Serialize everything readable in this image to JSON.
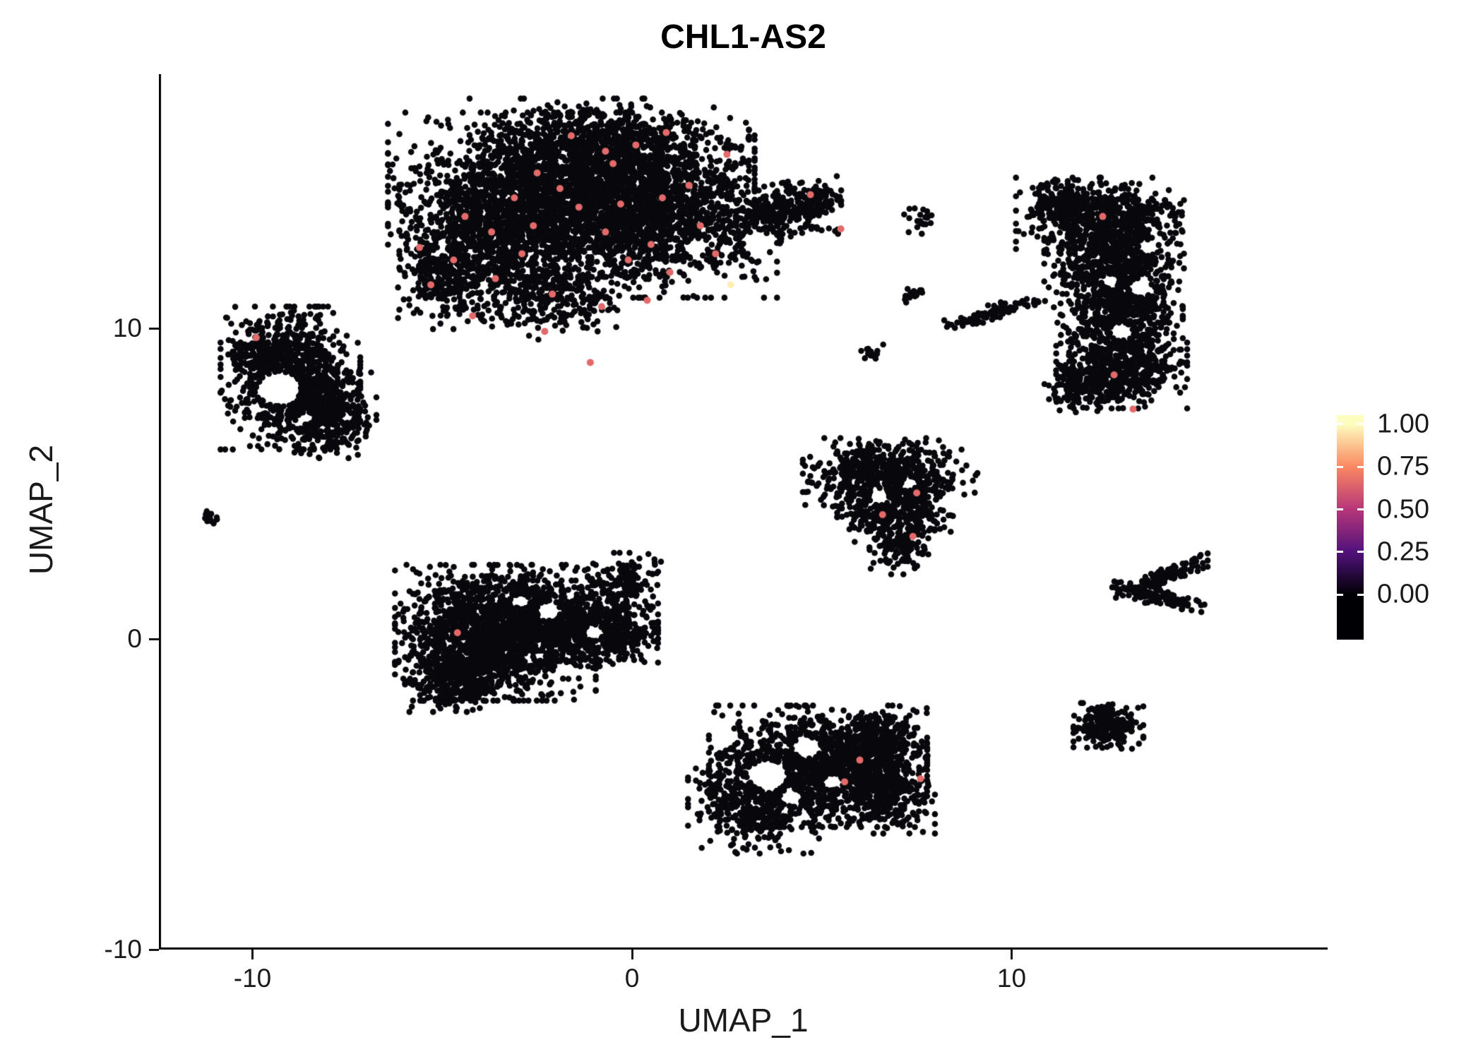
{
  "title": "CHL1-AS2",
  "axes": {
    "x": {
      "label": "UMAP_1",
      "ticks": [
        {
          "v": -10,
          "label": "-10"
        },
        {
          "v": 0,
          "label": "0"
        },
        {
          "v": 10,
          "label": "10"
        }
      ]
    },
    "y": {
      "label": "UMAP_2",
      "ticks": [
        {
          "v": 10,
          "label": "10"
        },
        {
          "v": 0,
          "label": "0"
        },
        {
          "v": -10,
          "label": "-10"
        }
      ]
    }
  },
  "legend": {
    "labels": [
      "1.00",
      "0.75",
      "0.50",
      "0.25",
      "0.00"
    ],
    "colors": [
      "#FCFDBF",
      "#FB8861",
      "#B63679",
      "#51127C",
      "#000004"
    ]
  },
  "chart_data": {
    "type": "scatter",
    "title": "CHL1-AS2",
    "xlabel": "UMAP_1",
    "ylabel": "UMAP_2",
    "xlim": [
      -12.4,
      18.3
    ],
    "ylim": [
      -10.2,
      18.2
    ],
    "x_ticks": [
      -10,
      0,
      10
    ],
    "y_ticks": [
      -10,
      0,
      10
    ],
    "grid": false,
    "legend_position": "right",
    "colorscale": {
      "name": "magma-like",
      "domain": [
        0,
        1
      ],
      "stops": [
        [
          0,
          "#000004"
        ],
        [
          0.25,
          "#51127C"
        ],
        [
          0.5,
          "#B63679"
        ],
        [
          0.75,
          "#FB8861"
        ],
        [
          1,
          "#FCFDBF"
        ]
      ]
    },
    "base_point_color": "#09090D",
    "point_radius_px": 4.3,
    "seed": 42,
    "clusters": [
      {
        "name": "top-large",
        "blobs": [
          [
            -1.6,
            14.3,
            2.1,
            1.15,
            2400,
            0
          ],
          [
            -3.6,
            12.9,
            1.1,
            1.0,
            800,
            0
          ],
          [
            0.6,
            13.4,
            1.4,
            1.05,
            1000,
            0
          ],
          [
            -0.6,
            15.9,
            1.6,
            0.65,
            650,
            0
          ],
          [
            -4.9,
            11.7,
            0.55,
            0.75,
            240,
            0
          ],
          [
            -2.0,
            10.9,
            0.9,
            0.55,
            280,
            0
          ],
          [
            3.9,
            13.7,
            0.7,
            0.42,
            300,
            0.25
          ],
          [
            4.9,
            14.15,
            0.25,
            0.18,
            60,
            0
          ],
          [
            5.4,
            13.1,
            0.12,
            0.1,
            4,
            0
          ]
        ],
        "holes": [
          [
            1.9,
            11.5,
            0.4
          ],
          [
            1.7,
            12.6,
            0.3
          ],
          [
            3.3,
            12.8,
            0.35
          ],
          [
            0.1,
            10.5,
            0.35
          ]
        ]
      },
      {
        "name": "left-ring",
        "blobs": [
          [
            -9.0,
            8.4,
            0.8,
            1.0,
            900,
            0
          ],
          [
            -8.0,
            7.2,
            0.55,
            0.6,
            320,
            0
          ],
          [
            -9.6,
            9.3,
            0.4,
            0.35,
            150,
            0
          ]
        ],
        "holes": [
          [
            -9.3,
            8.05,
            0.55
          ],
          [
            -8.6,
            7.1,
            0.2
          ]
        ]
      },
      {
        "name": "far-left-dots",
        "blobs": [
          [
            -11.15,
            3.95,
            0.13,
            0.17,
            14,
            0
          ]
        ],
        "holes": []
      },
      {
        "name": "bottom-left",
        "blobs": [
          [
            -3.6,
            0.2,
            1.15,
            0.95,
            1700,
            0
          ],
          [
            -1.5,
            0.5,
            0.95,
            0.6,
            650,
            0
          ],
          [
            -0.2,
            1.9,
            0.42,
            0.38,
            130,
            0
          ],
          [
            -4.6,
            -1.2,
            0.6,
            0.5,
            300,
            0
          ],
          [
            -0.4,
            0.0,
            0.45,
            0.35,
            120,
            0
          ]
        ],
        "holes": [
          [
            -2.2,
            0.9,
            0.3
          ],
          [
            -1.0,
            0.2,
            0.25
          ],
          [
            -2.9,
            1.2,
            0.22
          ]
        ]
      },
      {
        "name": "bottom-center",
        "blobs": [
          [
            4.9,
            -4.1,
            1.25,
            0.85,
            1400,
            0
          ],
          [
            3.2,
            -5.3,
            0.75,
            0.7,
            450,
            0
          ],
          [
            6.6,
            -5.0,
            0.6,
            0.55,
            300,
            0
          ],
          [
            6.5,
            -3.2,
            0.55,
            0.45,
            260,
            0
          ]
        ],
        "holes": [
          [
            3.6,
            -4.4,
            0.5
          ],
          [
            4.6,
            -3.5,
            0.35
          ],
          [
            4.2,
            -5.1,
            0.28
          ],
          [
            5.3,
            -4.6,
            0.25
          ]
        ]
      },
      {
        "name": "mid-triangle",
        "blobs": [
          [
            6.8,
            5.2,
            1.0,
            0.55,
            550,
            0
          ],
          [
            6.9,
            4.1,
            0.65,
            0.5,
            300,
            0
          ],
          [
            7.0,
            3.0,
            0.35,
            0.4,
            110,
            0
          ],
          [
            5.95,
            5.7,
            0.3,
            0.25,
            70,
            0
          ]
        ],
        "holes": [
          [
            6.5,
            4.6,
            0.25
          ],
          [
            7.3,
            5.0,
            0.2
          ]
        ]
      },
      {
        "name": "right-tall",
        "blobs": [
          [
            12.3,
            13.7,
            0.95,
            0.5,
            480,
            0
          ],
          [
            12.7,
            12.4,
            0.8,
            0.75,
            650,
            0
          ],
          [
            12.9,
            10.6,
            0.7,
            0.8,
            600,
            0
          ],
          [
            12.9,
            8.8,
            0.75,
            0.6,
            480,
            0
          ],
          [
            11.9,
            8.1,
            0.45,
            0.35,
            160,
            0
          ],
          [
            11.2,
            14.1,
            0.3,
            0.3,
            90,
            0
          ]
        ],
        "holes": [
          [
            13.4,
            11.3,
            0.3
          ],
          [
            12.9,
            9.9,
            0.28
          ],
          [
            13.6,
            12.6,
            0.25
          ],
          [
            12.6,
            11.5,
            0.22
          ]
        ]
      },
      {
        "name": "mid-small-top",
        "blobs": [
          [
            7.6,
            13.5,
            0.2,
            0.25,
            22,
            0
          ]
        ],
        "holes": []
      },
      {
        "name": "mid-small-a",
        "blobs": [
          [
            7.4,
            11.1,
            0.16,
            0.14,
            18,
            0
          ]
        ],
        "holes": []
      },
      {
        "name": "mid-small-b",
        "blobs": [
          [
            6.35,
            9.2,
            0.22,
            0.12,
            16,
            0
          ]
        ],
        "holes": []
      },
      {
        "name": "mid-streak",
        "blobs": [
          [
            9.5,
            10.5,
            0.6,
            0.12,
            90,
            0.3
          ]
        ],
        "holes": []
      },
      {
        "name": "right-arrow",
        "blobs": [
          [
            13.9,
            1.95,
            0.55,
            0.13,
            130,
            0.45
          ],
          [
            13.9,
            1.35,
            0.55,
            0.12,
            110,
            -0.2
          ]
        ],
        "holes": []
      },
      {
        "name": "bottom-right-blob",
        "blobs": [
          [
            12.55,
            -2.8,
            0.4,
            0.32,
            200,
            0
          ]
        ],
        "holes": []
      }
    ],
    "expressing_cells": {
      "default_value": 0.66,
      "points": [
        [
          -0.7,
          15.7
        ],
        [
          0.1,
          15.9
        ],
        [
          -2.5,
          15.0
        ],
        [
          -0.5,
          15.3
        ],
        [
          2.5,
          15.6
        ],
        [
          0.8,
          14.2
        ],
        [
          -1.4,
          13.9
        ],
        [
          -2.6,
          13.3
        ],
        [
          -3.7,
          13.1
        ],
        [
          -0.7,
          13.1
        ],
        [
          0.5,
          12.7
        ],
        [
          1.8,
          13.3
        ],
        [
          -4.7,
          12.2
        ],
        [
          -3.6,
          11.6
        ],
        [
          -2.1,
          11.1
        ],
        [
          -0.8,
          10.7
        ],
        [
          0.4,
          10.9
        ],
        [
          -2.3,
          9.9
        ],
        [
          -1.1,
          8.9
        ],
        [
          -4.2,
          10.4
        ],
        [
          -5.3,
          11.4
        ],
        [
          -1.9,
          14.5
        ],
        [
          -3.1,
          14.2
        ],
        [
          1.5,
          14.6
        ],
        [
          -0.1,
          12.2
        ],
        [
          1.0,
          11.8
        ],
        [
          -2.9,
          12.4
        ],
        [
          -5.6,
          12.6
        ],
        [
          2.2,
          12.4
        ],
        [
          -4.4,
          13.6
        ],
        [
          0.9,
          16.3
        ],
        [
          -1.6,
          16.2
        ],
        [
          -0.3,
          14.0
        ],
        [
          4.7,
          14.3
        ],
        [
          5.5,
          13.2
        ],
        [
          2.6,
          11.4,
          0.97
        ],
        [
          -9.9,
          9.7
        ],
        [
          -4.6,
          0.2
        ],
        [
          6.0,
          -3.9
        ],
        [
          5.6,
          -4.6
        ],
        [
          7.6,
          -4.5
        ],
        [
          7.5,
          4.7
        ],
        [
          6.6,
          4.0
        ],
        [
          7.4,
          3.3
        ],
        [
          12.4,
          13.6
        ],
        [
          12.7,
          8.5
        ],
        [
          13.2,
          7.4
        ]
      ]
    }
  }
}
